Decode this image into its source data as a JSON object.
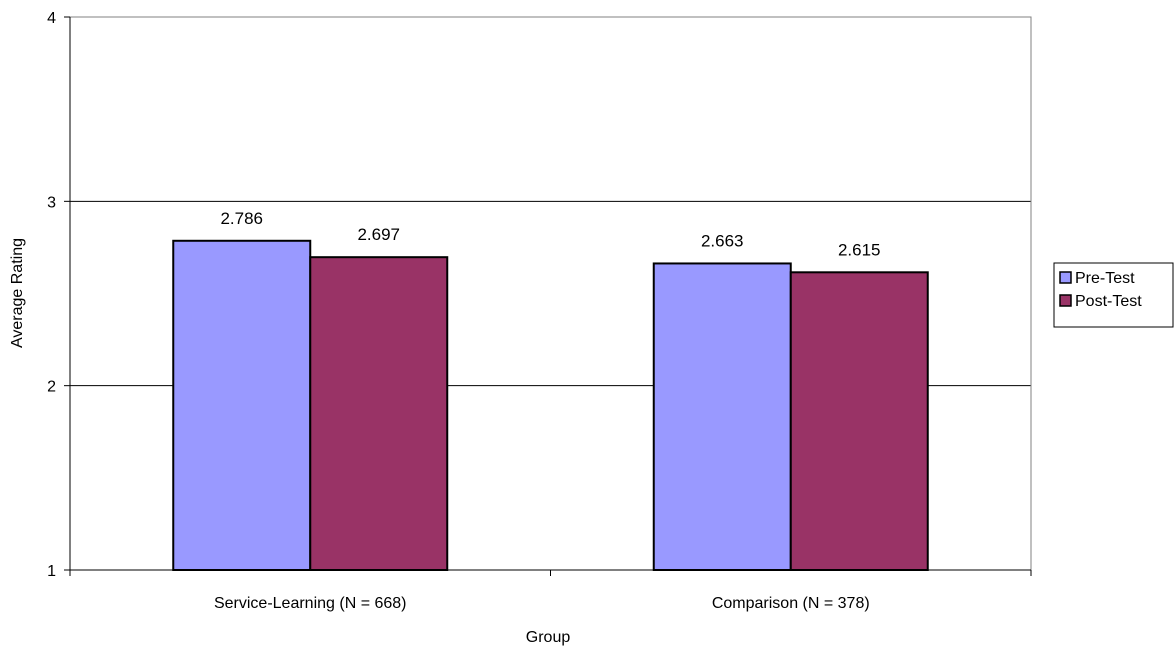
{
  "chart_data": {
    "type": "bar",
    "title": "",
    "xlabel": "Group",
    "ylabel": "Average Rating",
    "categories": [
      "Service-Learning (N = 668)",
      "Comparison (N = 378)"
    ],
    "series": [
      {
        "name": "Pre-Test",
        "values": [
          2.786,
          2.663
        ],
        "color": "#9999ff"
      },
      {
        "name": "Post-Test",
        "values": [
          2.697,
          2.615
        ],
        "color": "#993366"
      }
    ],
    "ylim": [
      1,
      4
    ],
    "yticks": [
      1,
      2,
      3,
      4
    ],
    "grid": true,
    "legend_position": "right",
    "data_labels": [
      [
        "2.786",
        "2.697"
      ],
      [
        "2.663",
        "2.615"
      ]
    ]
  }
}
